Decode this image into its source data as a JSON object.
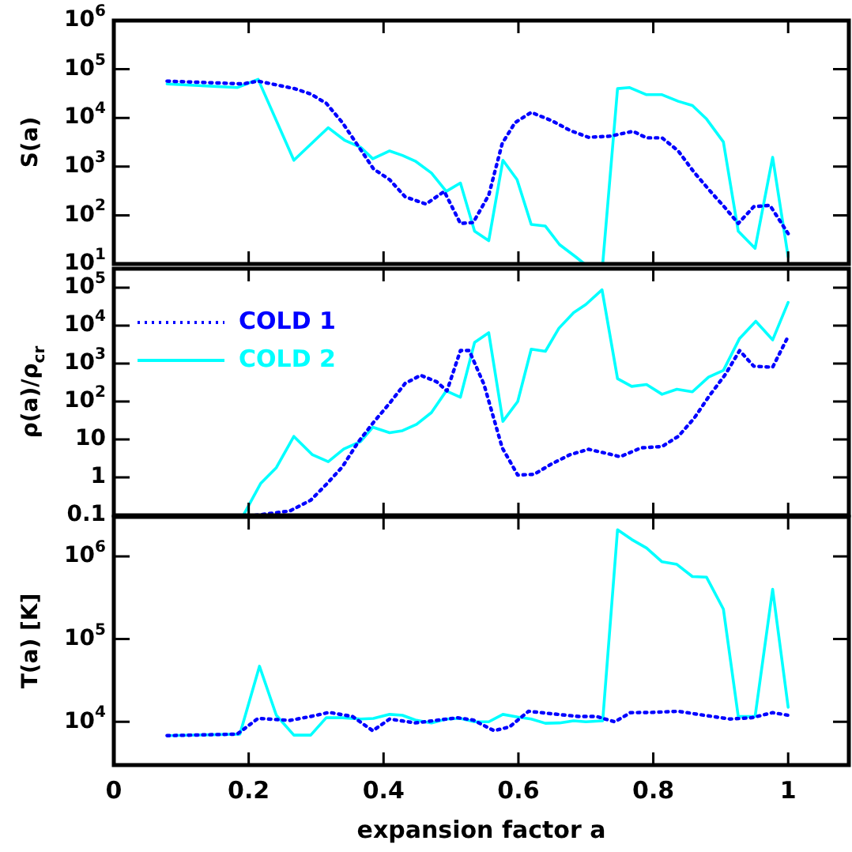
{
  "chart_data": [
    {
      "type": "line",
      "ylabel": "S(a)",
      "log": "y",
      "xlim": [
        0,
        1.09
      ],
      "xticks": [
        0,
        0.2,
        0.4,
        0.6,
        0.8,
        1
      ],
      "ylim": [
        10,
        1000000
      ],
      "yticks": [
        {
          "value": 10,
          "label": "10$^{1}$"
        },
        {
          "value": 100,
          "label": "10$^{2}$"
        },
        {
          "value": 1000,
          "label": "10$^{3}$"
        },
        {
          "value": 10000,
          "label": "10$^{4}$"
        },
        {
          "value": 100000,
          "label": "10$^{5}$"
        },
        {
          "value": 1000000,
          "label": "10$^{6}$"
        }
      ],
      "tick_labels": "y",
      "marker": "none",
      "legend": false,
      "series": [
        {
          "color": "#0000ff",
          "line_style": "dotted",
          "x": [
            0.079,
            0.191,
            0.214,
            0.268,
            0.292,
            0.315,
            0.339,
            0.362,
            0.385,
            0.409,
            0.432,
            0.463,
            0.49,
            0.514,
            0.533,
            0.556,
            0.576,
            0.595,
            0.619,
            0.65,
            0.677,
            0.704,
            0.735,
            0.77,
            0.79,
            0.813,
            0.837,
            0.86,
            0.883,
            0.907,
            0.926,
            0.949,
            0.973,
            1.0
          ],
          "values": [
            57000,
            50000,
            57000,
            40000,
            31000,
            20000,
            8000,
            2700,
            900,
            540,
            240,
            170,
            310,
            68,
            71,
            260,
            3000,
            8000,
            13000,
            8700,
            5500,
            4000,
            4200,
            5300,
            3900,
            3900,
            2100,
            780,
            330,
            140,
            68,
            150,
            160,
            42
          ]
        },
        {
          "color": "#00ffff",
          "line_style": "solid",
          "x": [
            0.079,
            0.183,
            0.214,
            0.267,
            0.318,
            0.342,
            0.366,
            0.384,
            0.409,
            0.428,
            0.447,
            0.471,
            0.493,
            0.514,
            0.535,
            0.556,
            0.577,
            0.598,
            0.619,
            0.64,
            0.661,
            0.685,
            0.698,
            0.725,
            0.747,
            0.765,
            0.79,
            0.813,
            0.837,
            0.858,
            0.879,
            0.904,
            0.926,
            0.951,
            0.977,
            1.0
          ],
          "values": [
            50000,
            42000,
            62000,
            1350,
            6300,
            3500,
            2500,
            1450,
            2100,
            1700,
            1300,
            740,
            310,
            460,
            47,
            30,
            1350,
            540,
            65,
            60,
            25,
            14,
            10,
            10,
            40000,
            42000,
            30000,
            30000,
            22000,
            18000,
            9500,
            3200,
            47,
            21,
            1550,
            14
          ]
        }
      ]
    },
    {
      "type": "line",
      "ylabel": "ρ(a)/ρ$_{cr}$",
      "log": "y",
      "xlim": [
        0,
        1.09
      ],
      "xticks": [
        0,
        0.2,
        0.4,
        0.6,
        0.8,
        1
      ],
      "ylim": [
        0.1,
        316000
      ],
      "yticks": [
        0.1,
        1,
        10,
        {
          "value": 100,
          "label": "10$^{2}$"
        },
        {
          "value": 1000,
          "label": "10$^{3}$"
        },
        {
          "value": 10000,
          "label": "10$^{4}$"
        },
        {
          "value": 100000,
          "label": "10$^{5}$"
        }
      ],
      "tick_labels": "y",
      "marker": "none",
      "legend": "top left",
      "series": [
        {
          "name": "COLD 1",
          "color": "#0000ff",
          "line_style": "dotted",
          "x": [
            0.21,
            0.261,
            0.292,
            0.315,
            0.339,
            0.362,
            0.385,
            0.409,
            0.432,
            0.455,
            0.479,
            0.494,
            0.514,
            0.527,
            0.549,
            0.576,
            0.599,
            0.623,
            0.65,
            0.677,
            0.704,
            0.728,
            0.751,
            0.782,
            0.813,
            0.837,
            0.86,
            0.883,
            0.907,
            0.928,
            0.949,
            0.977,
            1.0
          ],
          "values": [
            0.1,
            0.13,
            0.25,
            0.65,
            1.9,
            8.3,
            28,
            90,
            300,
            490,
            330,
            190,
            2200,
            2200,
            280,
            6,
            1.15,
            1.2,
            2.3,
            4,
            5.5,
            4.4,
            3.5,
            6,
            6.5,
            12,
            35,
            140,
            520,
            2200,
            850,
            800,
            5200
          ]
        },
        {
          "name": "COLD 2",
          "color": "#00ffff",
          "line_style": "solid",
          "x": [
            0.192,
            0.218,
            0.241,
            0.267,
            0.294,
            0.318,
            0.341,
            0.366,
            0.384,
            0.409,
            0.428,
            0.449,
            0.471,
            0.493,
            0.514,
            0.535,
            0.556,
            0.577,
            0.599,
            0.619,
            0.64,
            0.66,
            0.682,
            0.7,
            0.724,
            0.747,
            0.768,
            0.79,
            0.813,
            0.835,
            0.858,
            0.882,
            0.904,
            0.928,
            0.952,
            0.977,
            1.0
          ],
          "values": [
            0.1,
            0.7,
            1.8,
            12,
            4,
            2.6,
            5.6,
            8.8,
            21,
            15,
            17,
            25,
            51,
            190,
            130,
            3600,
            6500,
            30,
            100,
            2400,
            2100,
            8500,
            22000,
            36000,
            88000,
            400,
            250,
            280,
            155,
            210,
            180,
            440,
            660,
            4600,
            13000,
            4200,
            41000
          ]
        }
      ]
    },
    {
      "type": "line",
      "ylabel": "T(a) [K]",
      "xlabel": "expansion factor a",
      "log": "y",
      "xlim": [
        0,
        1.09
      ],
      "xticks": [
        0,
        0.2,
        0.4,
        0.6,
        0.8,
        1
      ],
      "ylim": [
        3000,
        3000000
      ],
      "yticks": [
        {
          "value": 10000,
          "label": "10$^{4}$"
        },
        {
          "value": 100000,
          "label": "10$^{5}$"
        },
        {
          "value": 1000000,
          "label": "10$^{6}$"
        }
      ],
      "marker": "none",
      "legend": false,
      "series": [
        {
          "color": "#0000ff",
          "line_style": "dotted",
          "x": [
            0.079,
            0.183,
            0.214,
            0.261,
            0.292,
            0.319,
            0.354,
            0.384,
            0.409,
            0.447,
            0.51,
            0.533,
            0.564,
            0.587,
            0.615,
            0.65,
            0.689,
            0.716,
            0.743,
            0.766,
            0.798,
            0.837,
            0.875,
            0.914,
            0.946,
            0.977,
            1.0
          ],
          "values": [
            6800,
            7100,
            11000,
            10400,
            11600,
            13000,
            11600,
            7800,
            10800,
            9700,
            11200,
            10500,
            7800,
            8700,
            13400,
            12500,
            11600,
            11600,
            10000,
            12900,
            13000,
            13400,
            12000,
            10800,
            11200,
            12900,
            12000
          ]
        },
        {
          "color": "#00ffff",
          "line_style": "solid",
          "x": [
            0.079,
            0.187,
            0.216,
            0.241,
            0.267,
            0.292,
            0.315,
            0.339,
            0.366,
            0.385,
            0.409,
            0.428,
            0.447,
            0.471,
            0.493,
            0.514,
            0.535,
            0.556,
            0.577,
            0.599,
            0.619,
            0.64,
            0.661,
            0.682,
            0.7,
            0.725,
            0.747,
            0.768,
            0.79,
            0.813,
            0.835,
            0.858,
            0.879,
            0.904,
            0.926,
            0.951,
            0.977,
            1.0
          ],
          "values": [
            6800,
            7100,
            47000,
            12000,
            6900,
            6900,
            11200,
            11200,
            10800,
            11000,
            12300,
            12000,
            10500,
            9700,
            10800,
            11000,
            10000,
            10000,
            12300,
            11400,
            10800,
            9600,
            9700,
            10300,
            10000,
            10300,
            2100000,
            1600000,
            1260000,
            860000,
            800000,
            570000,
            560000,
            230000,
            11600,
            11600,
            400000,
            15000
          ]
        }
      ]
    }
  ]
}
